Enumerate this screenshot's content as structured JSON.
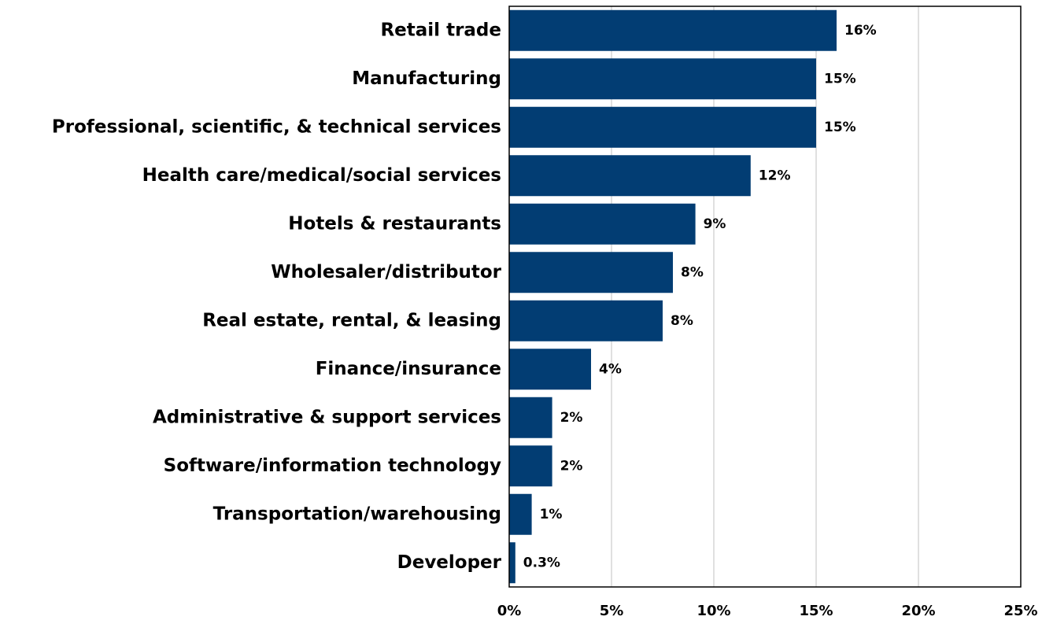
{
  "chart_data": {
    "type": "barh",
    "categories": [
      "Retail trade",
      "Manufacturing",
      "Professional, scientific, & technical services",
      "Health care/medical/social services",
      "Hotels & restaurants",
      "Wholesaler/distributor",
      "Real estate, rental, & leasing",
      "Finance/insurance",
      "Administrative & support services",
      "Software/information technology",
      "Transportation/warehousing",
      "Developer"
    ],
    "values": [
      16,
      15,
      15,
      11.8,
      9.1,
      8,
      7.5,
      4,
      2.1,
      2.1,
      1.1,
      0.3
    ],
    "value_labels": [
      "16%",
      "15%",
      "15%",
      "12%",
      "9%",
      "8%",
      "8%",
      "4%",
      "2%",
      "2%",
      "1%",
      "0.3%"
    ],
    "color": "#023d73",
    "xlim": [
      0,
      25
    ],
    "xticks": [
      {
        "value": 0,
        "label": "0%"
      },
      {
        "value": 5,
        "label": "5%"
      },
      {
        "value": 10,
        "label": "10%"
      },
      {
        "value": 15,
        "label": "15%"
      },
      {
        "value": 20,
        "label": "20%"
      },
      {
        "value": 25,
        "label": "25%"
      }
    ],
    "grid": true
  }
}
